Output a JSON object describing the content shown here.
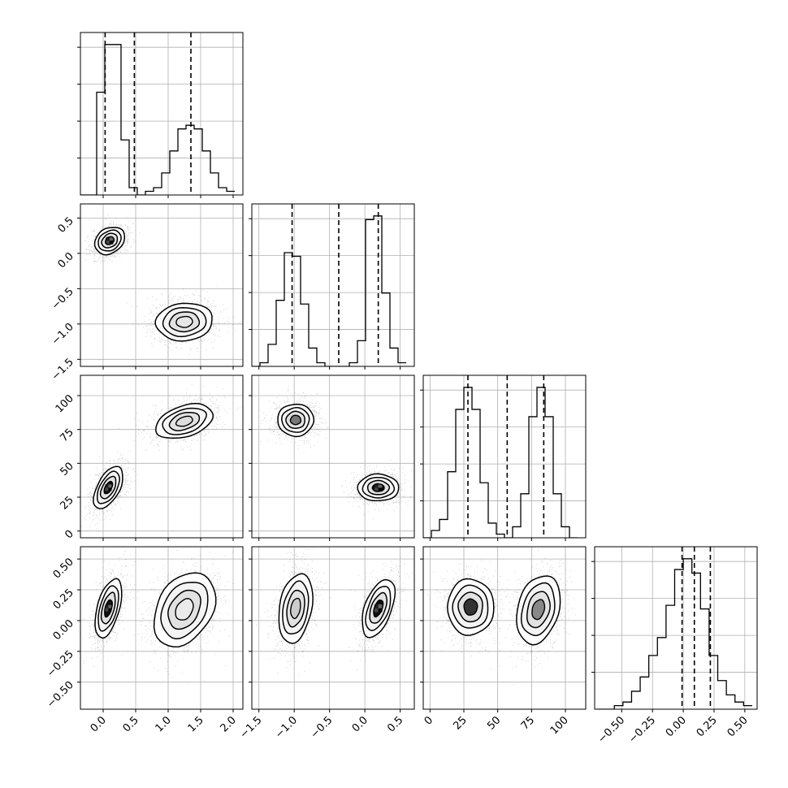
{
  "chart_data": {
    "type": "corner",
    "grid": true,
    "colors": {
      "line": "#000000",
      "grid": "#b0b0b0",
      "points": "#000000"
    },
    "parameters": [
      {
        "index": 0,
        "lim": [
          -0.35,
          2.15
        ],
        "ticks": [
          0.0,
          0.5,
          1.0,
          1.5,
          2.0
        ],
        "tick_labels": [
          "0.0",
          "0.5",
          "1.0",
          "1.5",
          "2.0"
        ],
        "quantiles": [
          0.03,
          0.48,
          1.35
        ]
      },
      {
        "index": 1,
        "lim": [
          -1.6,
          0.7
        ],
        "ticks": [
          -1.5,
          -1.0,
          -0.5,
          0.0,
          0.5
        ],
        "tick_labels": [
          "−1.5",
          "−1.0",
          "−0.5",
          "0.0",
          "0.5"
        ],
        "quantiles": [
          -1.03,
          -0.37,
          0.19
        ]
      },
      {
        "index": 2,
        "lim": [
          -5,
          115
        ],
        "ticks": [
          0,
          25,
          50,
          75,
          100
        ],
        "tick_labels": [
          "0",
          "25",
          "50",
          "75",
          "100"
        ],
        "quantiles": [
          28,
          57,
          84
        ]
      },
      {
        "index": 3,
        "lim": [
          -0.72,
          0.6
        ],
        "ticks": [
          -0.5,
          -0.25,
          0.0,
          0.25,
          0.5
        ],
        "tick_labels": [
          "−0.50",
          "−0.25",
          "0.00",
          "0.25",
          "0.50"
        ],
        "quantiles": [
          -0.01,
          0.09,
          0.22
        ]
      }
    ],
    "histograms": [
      {
        "param": 0,
        "bins": [
          -0.35,
          -0.225,
          -0.1,
          0.025,
          0.15,
          0.275,
          0.4,
          0.525,
          0.65,
          0.775,
          0.9,
          1.025,
          1.15,
          1.275,
          1.4,
          1.525,
          1.65,
          1.775,
          1.9,
          2.025
        ],
        "counts": [
          0,
          0,
          28,
          41,
          41,
          15,
          2,
          0,
          1,
          2,
          6,
          12,
          18,
          19,
          18,
          12,
          6,
          2,
          1
        ]
      },
      {
        "param": 1,
        "bins": [
          -1.6,
          -1.485,
          -1.37,
          -1.255,
          -1.14,
          -1.025,
          -0.91,
          -0.795,
          -0.68,
          -0.565,
          -0.45,
          -0.335,
          -0.22,
          -0.105,
          0.01,
          0.125,
          0.24,
          0.355,
          0.47,
          0.585
        ],
        "counts": [
          0,
          1,
          6,
          18,
          31,
          30,
          17,
          5,
          1,
          0,
          0,
          0,
          1,
          7,
          40,
          41,
          20,
          5,
          1
        ]
      },
      {
        "param": 2,
        "bins": [
          -5,
          1,
          7,
          13,
          19,
          25,
          31,
          37,
          43,
          49,
          55,
          61,
          67,
          73,
          79,
          85,
          91,
          97,
          103,
          109
        ],
        "counts": [
          0,
          2,
          5,
          18,
          35,
          41,
          35,
          15,
          4,
          1,
          0,
          3,
          12,
          33,
          41,
          33,
          12,
          3,
          0
        ]
      },
      {
        "param": 3,
        "bins": [
          -0.7,
          -0.63,
          -0.56,
          -0.49,
          -0.42,
          -0.35,
          -0.28,
          -0.21,
          -0.14,
          -0.07,
          0.0,
          0.07,
          0.14,
          0.21,
          0.28,
          0.35,
          0.42,
          0.49,
          0.56
        ],
        "counts": [
          0,
          0,
          1,
          2,
          5,
          9,
          15,
          20,
          29,
          39,
          42,
          38,
          28,
          15,
          8,
          4,
          2,
          1
        ]
      }
    ],
    "modes": [
      {
        "mean": [
          0.08,
          0.2,
          33,
          0.1
        ],
        "sd": [
          0.09,
          0.13,
          8,
          0.12
        ],
        "rotation_deg": [
          0,
          -40,
          -60,
          -70,
          0,
          0,
          -80
        ]
      },
      {
        "mean": [
          1.25,
          -0.97,
          82,
          0.1
        ],
        "sd": [
          0.22,
          0.14,
          7,
          0.14
        ],
        "rotation_deg": [
          0,
          -5,
          -20,
          -55,
          0,
          0,
          80
        ]
      }
    ],
    "panels": [
      {
        "row": 1,
        "col": 0,
        "modes": [
          {
            "mean": [
              0.1,
              0.18
            ],
            "sd": [
              0.1,
              0.12
            ],
            "angle_deg": -35,
            "core_shade": "#111111"
          },
          {
            "mean": [
              1.25,
              -0.97
            ],
            "sd": [
              0.23,
              0.14
            ],
            "angle_deg": -5,
            "core_shade": "#e6e6e6"
          }
        ]
      },
      {
        "row": 2,
        "col": 0,
        "modes": [
          {
            "mean": [
              0.08,
              32
            ],
            "sd": [
              0.09,
              9
            ],
            "angle_deg": -62,
            "core_shade": "#111111"
          },
          {
            "mean": [
              1.25,
              81
            ],
            "sd": [
              0.24,
              6
            ],
            "angle_deg": -18,
            "core_shade": "#dddddd"
          }
        ]
      },
      {
        "row": 2,
        "col": 1,
        "modes": [
          {
            "mean": [
              -0.98,
              82
            ],
            "sd": [
              0.12,
              7
            ],
            "angle_deg": 0,
            "core_shade": "#777777"
          },
          {
            "mean": [
              0.19,
              32
            ],
            "sd": [
              0.1,
              8
            ],
            "angle_deg": 0,
            "core_shade": "#111111"
          }
        ]
      },
      {
        "row": 3,
        "col": 0,
        "modes": [
          {
            "mean": [
              0.08,
              0.1
            ],
            "sd": [
              0.09,
              0.13
            ],
            "angle_deg": -75,
            "core_shade": "#111111"
          },
          {
            "mean": [
              1.25,
              0.09
            ],
            "sd": [
              0.22,
              0.17
            ],
            "angle_deg": -60,
            "core_shade": "#ebebeb"
          }
        ]
      },
      {
        "row": 3,
        "col": 1,
        "modes": [
          {
            "mean": [
              -0.98,
              0.1
            ],
            "sd": [
              0.12,
              0.15
            ],
            "angle_deg": -80,
            "core_shade": "#cccccc"
          },
          {
            "mean": [
              0.19,
              0.1
            ],
            "sd": [
              0.1,
              0.13
            ],
            "angle_deg": -70,
            "core_shade": "#111111"
          }
        ]
      },
      {
        "row": 3,
        "col": 2,
        "modes": [
          {
            "mean": [
              30,
              0.11
            ],
            "sd": [
              9,
              0.12
            ],
            "angle_deg": -90,
            "core_shade": "#333333"
          },
          {
            "mean": [
              80,
              0.09
            ],
            "sd": [
              8,
              0.15
            ],
            "angle_deg": -75,
            "core_shade": "#888888"
          }
        ]
      }
    ]
  }
}
